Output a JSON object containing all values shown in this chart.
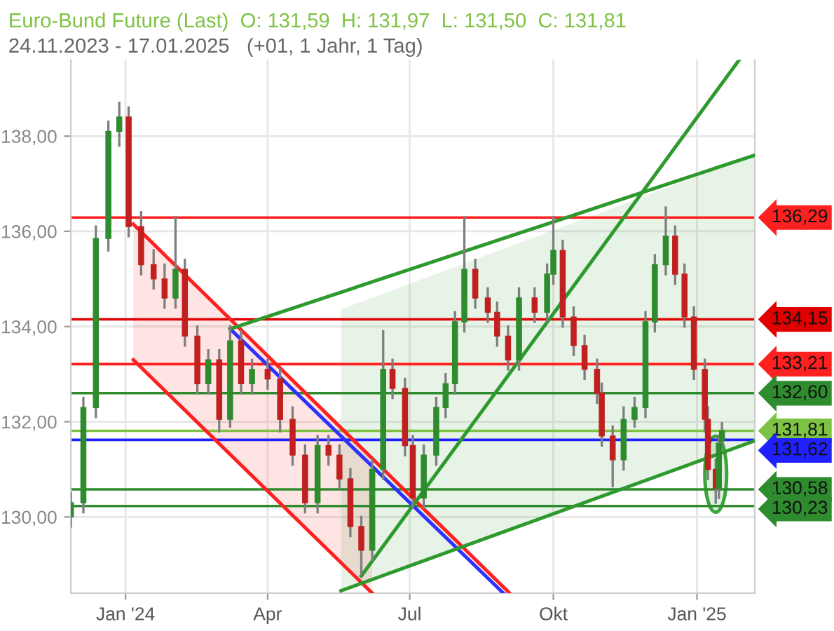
{
  "chart_data": {
    "type": "candlestick",
    "title": "Euro-Bund Future (Last)  O: 131,59  H: 131,97  L: 131,50  C: 131,81",
    "subtitle": "24.11.2023 - 17.01.2025   (+01, 1 Jahr, 1 Tag)",
    "x": [
      "2023-11-27",
      "2023-12-05",
      "2023-12-13",
      "2023-12-21",
      "2023-12-28",
      "2024-01-03",
      "2024-01-11",
      "2024-01-19",
      "2024-01-26",
      "2024-02-02",
      "2024-02-08",
      "2024-02-16",
      "2024-02-23",
      "2024-03-01",
      "2024-03-08",
      "2024-03-15",
      "2024-03-22",
      "2024-04-01",
      "2024-04-09",
      "2024-04-17",
      "2024-04-25",
      "2024-05-03",
      "2024-05-10",
      "2024-05-17",
      "2024-05-24",
      "2024-05-31",
      "2024-06-07",
      "2024-06-14",
      "2024-06-20",
      "2024-06-28",
      "2024-07-03",
      "2024-07-10",
      "2024-07-18",
      "2024-07-24",
      "2024-07-30",
      "2024-08-05",
      "2024-08-12",
      "2024-08-20",
      "2024-08-26",
      "2024-09-02",
      "2024-09-09",
      "2024-09-19",
      "2024-09-27",
      "2024-10-01",
      "2024-10-07",
      "2024-10-14",
      "2024-10-21",
      "2024-10-29",
      "2024-11-01",
      "2024-11-08",
      "2024-11-15",
      "2024-11-22",
      "2024-11-29",
      "2024-12-05",
      "2024-12-12",
      "2024-12-18",
      "2024-12-24",
      "2024-12-30",
      "2025-01-06",
      "2025-01-08",
      "2025-01-13",
      "2025-01-15",
      "2025-01-17"
    ],
    "ohlc": [
      [
        130.0,
        130.5,
        129.8,
        130.3
      ],
      [
        130.3,
        132.5,
        130.1,
        132.3
      ],
      [
        132.3,
        136.1,
        132.1,
        135.85
      ],
      [
        135.85,
        138.3,
        135.6,
        138.1
      ],
      [
        138.1,
        138.7,
        137.8,
        138.4
      ],
      [
        138.4,
        138.6,
        135.9,
        136.1
      ],
      [
        136.1,
        136.4,
        135.1,
        135.3
      ],
      [
        135.3,
        135.6,
        134.8,
        135.0
      ],
      [
        135.0,
        135.3,
        134.4,
        134.6
      ],
      [
        134.6,
        136.3,
        134.4,
        135.2
      ],
      [
        135.2,
        135.4,
        133.6,
        133.8
      ],
      [
        133.8,
        134.0,
        132.6,
        132.8
      ],
      [
        132.8,
        133.5,
        132.6,
        133.3
      ],
      [
        133.3,
        133.5,
        131.8,
        132.05
      ],
      [
        132.05,
        134.0,
        131.9,
        133.7
      ],
      [
        133.7,
        133.9,
        132.6,
        132.8
      ],
      [
        132.8,
        133.3,
        132.6,
        133.1
      ],
      [
        133.1,
        133.3,
        132.7,
        132.9
      ],
      [
        132.9,
        133.1,
        131.8,
        132.05
      ],
      [
        132.05,
        132.3,
        131.1,
        131.3
      ],
      [
        131.3,
        131.5,
        130.1,
        130.3
      ],
      [
        130.3,
        131.7,
        130.1,
        131.5
      ],
      [
        131.5,
        131.7,
        131.1,
        131.3
      ],
      [
        131.3,
        131.5,
        130.6,
        130.8
      ],
      [
        130.8,
        131.0,
        129.6,
        129.8
      ],
      [
        129.8,
        130.0,
        128.8,
        129.3
      ],
      [
        129.3,
        131.2,
        129.1,
        131.0
      ],
      [
        131.0,
        133.9,
        130.8,
        133.1
      ],
      [
        133.1,
        133.3,
        132.5,
        132.7
      ],
      [
        132.7,
        132.9,
        131.3,
        131.5
      ],
      [
        131.5,
        131.7,
        130.2,
        130.4
      ],
      [
        130.4,
        131.5,
        130.2,
        131.3
      ],
      [
        131.3,
        132.5,
        131.1,
        132.3
      ],
      [
        132.3,
        133.0,
        132.1,
        132.8
      ],
      [
        132.8,
        134.3,
        132.6,
        134.1
      ],
      [
        134.1,
        136.3,
        133.9,
        135.2
      ],
      [
        135.2,
        135.4,
        134.4,
        134.6
      ],
      [
        134.6,
        134.8,
        134.1,
        134.3
      ],
      [
        134.3,
        134.5,
        133.6,
        133.8
      ],
      [
        133.8,
        134.0,
        133.1,
        133.3
      ],
      [
        133.3,
        134.8,
        133.1,
        134.6
      ],
      [
        134.6,
        134.8,
        134.1,
        134.3
      ],
      [
        134.3,
        135.3,
        134.1,
        135.1
      ],
      [
        135.1,
        136.3,
        134.9,
        135.6
      ],
      [
        135.6,
        135.8,
        134.0,
        134.2
      ],
      [
        134.2,
        134.4,
        133.4,
        133.6
      ],
      [
        133.6,
        133.8,
        132.9,
        133.1
      ],
      [
        133.1,
        133.3,
        132.4,
        132.6
      ],
      [
        132.6,
        132.8,
        131.5,
        131.7
      ],
      [
        131.7,
        131.9,
        130.65,
        131.2
      ],
      [
        131.2,
        132.3,
        131.0,
        132.05
      ],
      [
        132.05,
        132.5,
        131.9,
        132.3
      ],
      [
        132.3,
        134.3,
        132.1,
        134.1
      ],
      [
        134.1,
        135.5,
        133.9,
        135.3
      ],
      [
        135.3,
        136.5,
        135.1,
        135.9
      ],
      [
        135.9,
        136.1,
        134.9,
        135.1
      ],
      [
        135.1,
        135.3,
        134.0,
        134.2
      ],
      [
        134.2,
        134.4,
        132.9,
        133.1
      ],
      [
        133.1,
        133.3,
        131.8,
        132.05
      ],
      [
        132.05,
        132.3,
        130.8,
        131.0
      ],
      [
        131.0,
        131.2,
        130.3,
        130.6
      ],
      [
        130.6,
        131.7,
        130.4,
        131.55
      ],
      [
        131.59,
        131.97,
        131.5,
        131.81
      ]
    ],
    "series": [
      {
        "type": "line",
        "color": "#ff2020",
        "x": [
          "2024-01-06",
          "2024-09-03"
        ],
        "values": [
          136.15,
          128.4
        ]
      },
      {
        "type": "line",
        "color": "#ff2020",
        "x": [
          "2024-01-06",
          "2024-06-07"
        ],
        "values": [
          133.3,
          128.4
        ],
        "lower": [
          133.3,
          128.4
        ],
        "upper": [
          136.15,
          131.23
        ]
      },
      {
        "type": "line",
        "color": "#3030ff",
        "x": [
          "2024-03-08",
          "2024-08-30"
        ],
        "values": [
          133.95,
          128.4
        ]
      },
      {
        "type": "line",
        "color": "#2e9a2e",
        "x": [
          "2024-03-08",
          "2025-02-07"
        ],
        "values": [
          133.95,
          137.6
        ]
      },
      {
        "type": "line",
        "color": "#2e9a2e",
        "x": [
          "2024-05-18",
          "2025-02-07"
        ],
        "values": [
          128.45,
          131.6
        ],
        "lower": [
          128.45,
          131.6
        ],
        "upper": [
          134.36,
          137.6
        ]
      },
      {
        "type": "line",
        "color": "#2e9a2e",
        "x": [
          "2024-05-31",
          "2025-01-28"
        ],
        "values": [
          128.76,
          139.6
        ]
      }
    ],
    "ref_lines": [
      {
        "axis": "y",
        "value": 136.29,
        "label": "136,29",
        "color": "#ff2020"
      },
      {
        "axis": "y",
        "value": 134.15,
        "label": "134,15",
        "color": "#e00000"
      },
      {
        "axis": "y",
        "value": 133.21,
        "label": "133,21",
        "color": "#ff2020"
      },
      {
        "axis": "y",
        "value": 132.6,
        "label": "132,60",
        "color": "#2e8b2e"
      },
      {
        "axis": "y",
        "value": 131.81,
        "label": "131,81",
        "color": "#7dc242"
      },
      {
        "axis": "y",
        "value": 131.62,
        "label": "131,62",
        "color": "#2020ff"
      },
      {
        "axis": "y",
        "value": 130.58,
        "label": "130,58",
        "color": "#2e8b2e"
      },
      {
        "axis": "y",
        "value": 130.23,
        "label": "130,23",
        "color": "#2e8b2e"
      }
    ],
    "ylim": [
      128.4,
      139.6
    ],
    "yticks": [
      {
        "value": 130,
        "label": "130,00"
      },
      {
        "value": 132,
        "label": "132,00"
      },
      {
        "value": 134,
        "label": "134,00"
      },
      {
        "value": 136,
        "label": "136,00"
      },
      {
        "value": 138,
        "label": "138,00"
      }
    ],
    "xlim": [
      "2023-11-27",
      "2025-02-07"
    ],
    "xticks": [
      {
        "value": "2024-01-01",
        "label": "Jan '24"
      },
      {
        "value": "2024-04-01",
        "label": "Apr"
      },
      {
        "value": "2024-07-01",
        "label": "Jul"
      },
      {
        "value": "2024-10-01",
        "label": "Okt"
      },
      {
        "value": "2025-01-01",
        "label": "Jan '25"
      }
    ],
    "grid": true
  }
}
